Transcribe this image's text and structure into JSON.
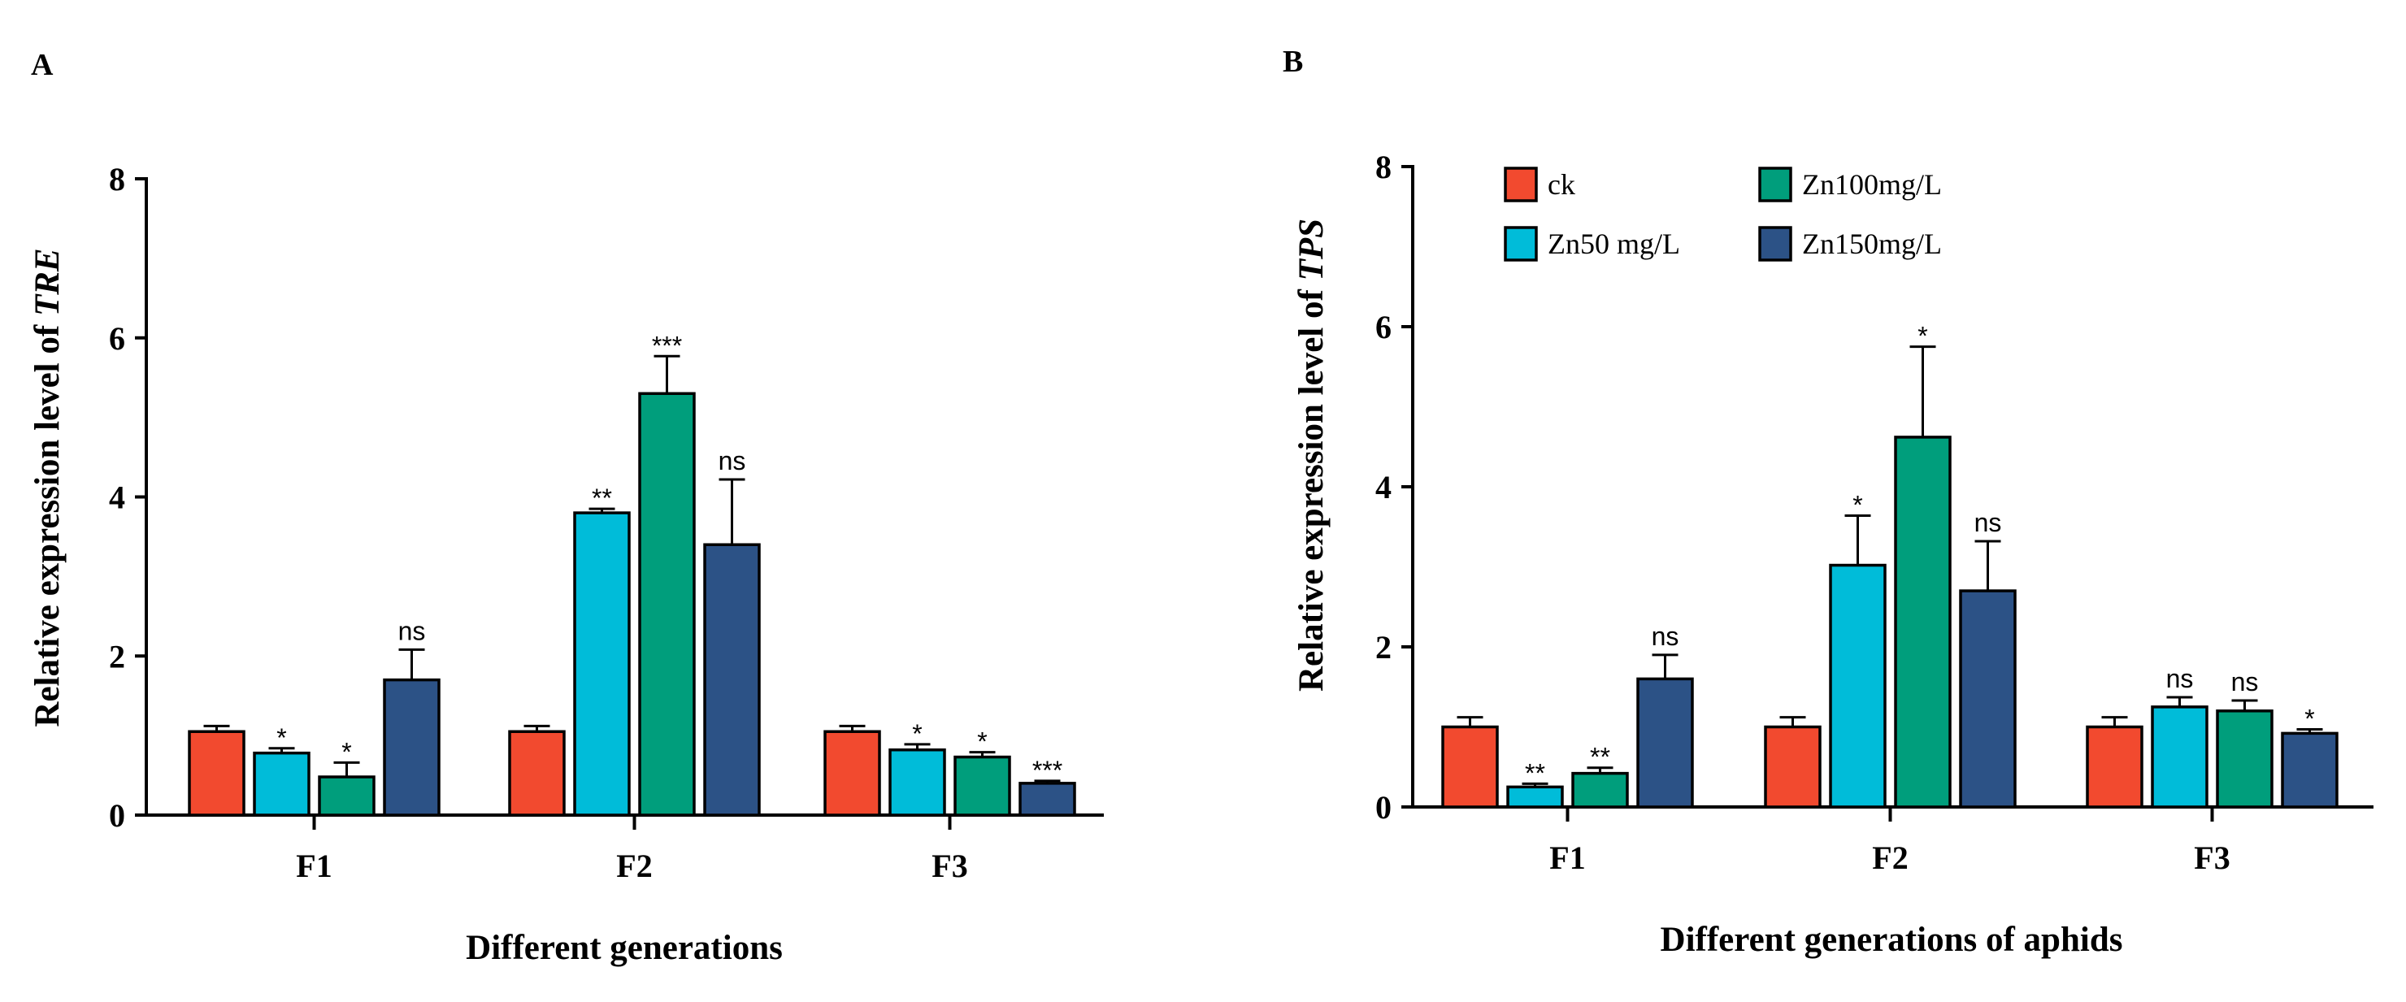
{
  "chart_data": [
    {
      "panel": "A",
      "type": "bar",
      "ylabel_prefix": "Relative expression level of ",
      "ylabel_gene": "TRE",
      "xlabel": "Different generations",
      "categories": [
        "F1",
        "F2",
        "F3"
      ],
      "ylim": [
        0,
        8
      ],
      "yticks": [
        "0",
        "2",
        "4",
        "6",
        "8"
      ],
      "series": [
        {
          "name": "ck",
          "color": "#F24A2F",
          "values": [
            1.05,
            1.05,
            1.05
          ],
          "errors": [
            0.07,
            0.07,
            0.07
          ],
          "sig": [
            "",
            "",
            ""
          ]
        },
        {
          "name": "Zn50 mg/L",
          "color": "#00BCD9",
          "values": [
            0.78,
            3.8,
            0.82
          ],
          "errors": [
            0.06,
            0.05,
            0.07
          ],
          "sig": [
            "*",
            "**",
            "*"
          ]
        },
        {
          "name": "Zn100mg/L",
          "color": "#009E7C",
          "values": [
            0.48,
            5.3,
            0.73
          ],
          "errors": [
            0.18,
            0.47,
            0.06
          ],
          "sig": [
            "*",
            "***",
            "*"
          ]
        },
        {
          "name": "Zn150mg/L",
          "color": "#2C5286",
          "values": [
            1.7,
            3.4,
            0.4
          ],
          "errors": [
            0.38,
            0.82,
            0.03
          ],
          "sig": [
            "ns",
            "ns",
            "***"
          ]
        }
      ]
    },
    {
      "panel": "B",
      "type": "bar",
      "ylabel_prefix": "Relative expression level of ",
      "ylabel_gene": "TPS",
      "xlabel": "Different generations of aphids",
      "categories": [
        "F1",
        "F2",
        "F3"
      ],
      "ylim": [
        0,
        8
      ],
      "yticks": [
        "0",
        "2",
        "4",
        "6",
        "8"
      ],
      "legend": [
        "ck",
        "Zn100mg/L",
        "Zn50 mg/L",
        "Zn150mg/L"
      ],
      "legend_position": "top-left",
      "series": [
        {
          "name": "ck",
          "color": "#F24A2F",
          "values": [
            1.0,
            1.0,
            1.0
          ],
          "errors": [
            0.12,
            0.12,
            0.12
          ],
          "sig": [
            "",
            "",
            ""
          ]
        },
        {
          "name": "Zn50 mg/L",
          "color": "#00BCD9",
          "values": [
            0.25,
            3.02,
            1.25
          ],
          "errors": [
            0.04,
            0.62,
            0.12
          ],
          "sig": [
            "**",
            "*",
            "ns"
          ]
        },
        {
          "name": "Zn100mg/L",
          "color": "#009E7C",
          "values": [
            0.42,
            4.62,
            1.2
          ],
          "errors": [
            0.07,
            1.13,
            0.13
          ],
          "sig": [
            "**",
            "*",
            "ns"
          ]
        },
        {
          "name": "Zn150mg/L",
          "color": "#2C5286",
          "values": [
            1.6,
            2.7,
            0.92
          ],
          "errors": [
            0.3,
            0.62,
            0.05
          ],
          "sig": [
            "ns",
            "ns",
            "*"
          ]
        }
      ]
    }
  ]
}
